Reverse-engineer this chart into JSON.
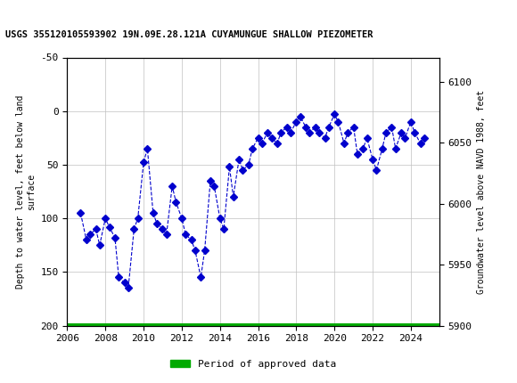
{
  "title": "USGS 355120105593902 19N.09E.28.121A CUYAMUNGUE SHALLOW PIEZOMETER",
  "usgs_header_color": "#006B3C",
  "ylabel_left": "Depth to water level, feet below land\nsurface",
  "ylabel_right": "Groundwater level above NAVD 1988, feet",
  "xlabel": "",
  "ylim_left": [
    200,
    -50
  ],
  "ylim_right": [
    5900,
    6120
  ],
  "xlim": [
    2006,
    2025.5
  ],
  "yticks_left": [
    -50,
    0,
    50,
    100,
    150,
    200
  ],
  "yticks_right": [
    5900,
    5950,
    6000,
    6050,
    6100
  ],
  "xticks": [
    2006,
    2008,
    2010,
    2012,
    2014,
    2016,
    2018,
    2020,
    2022,
    2024
  ],
  "line_color": "#0000CD",
  "line_style": "--",
  "marker": "D",
  "marker_size": 4,
  "grid_color": "#C0C0C0",
  "background_color": "#FFFFFF",
  "legend_label": "Period of approved data",
  "legend_color": "#00AA00",
  "approved_bar_y": 200,
  "approved_bar_xstart": 2006.0,
  "approved_bar_xend": 2025.5,
  "data_x": [
    2006.7,
    2007.0,
    2007.2,
    2007.5,
    2007.7,
    2008.0,
    2008.2,
    2008.5,
    2008.7,
    2009.0,
    2009.2,
    2009.5,
    2009.7,
    2010.0,
    2010.2,
    2010.5,
    2010.7,
    2011.0,
    2011.2,
    2011.5,
    2011.7,
    2012.0,
    2012.2,
    2012.5,
    2012.7,
    2013.0,
    2013.2,
    2013.5,
    2013.7,
    2014.0,
    2014.2,
    2014.5,
    2014.7,
    2015.0,
    2015.2,
    2015.5,
    2015.7,
    2016.0,
    2016.2,
    2016.5,
    2016.7,
    2017.0,
    2017.2,
    2017.5,
    2017.7,
    2018.0,
    2018.2,
    2018.5,
    2018.7,
    2019.0,
    2019.2,
    2019.5,
    2019.7,
    2020.0,
    2020.2,
    2020.5,
    2020.7,
    2021.0,
    2021.2,
    2021.5,
    2021.7,
    2022.0,
    2022.2,
    2022.5,
    2022.7,
    2023.0,
    2023.2,
    2023.5,
    2023.7,
    2024.0,
    2024.2,
    2024.5,
    2024.7
  ],
  "data_y": [
    95,
    120,
    115,
    110,
    125,
    100,
    108,
    118,
    155,
    160,
    165,
    110,
    100,
    48,
    35,
    95,
    105,
    110,
    115,
    70,
    85,
    100,
    115,
    120,
    130,
    155,
    130,
    65,
    70,
    100,
    110,
    52,
    80,
    45,
    55,
    50,
    35,
    25,
    30,
    20,
    25,
    30,
    20,
    15,
    20,
    10,
    5,
    15,
    20,
    15,
    20,
    25,
    15,
    3,
    10,
    30,
    20,
    15,
    40,
    35,
    25,
    45,
    55,
    35,
    20,
    15,
    35,
    20,
    25,
    10,
    20,
    30,
    25
  ]
}
